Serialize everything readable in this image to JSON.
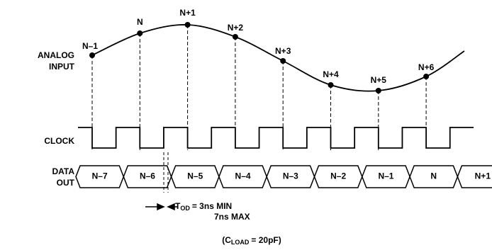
{
  "labels": {
    "analog_input": [
      "ANALOG",
      "INPUT"
    ],
    "clock": "CLOCK",
    "data_out": [
      "DATA",
      "OUT"
    ]
  },
  "samples": [
    "N–1",
    "N",
    "N+1",
    "N+2",
    "N+3",
    "N+4",
    "N+5",
    "N+6"
  ],
  "data_cells": [
    "N–7",
    "N–6",
    "N–5",
    "N–4",
    "N–3",
    "N–2",
    "N–1",
    "N",
    "N+1"
  ],
  "timing": {
    "symbol": "T",
    "subscript": "OD",
    "min": "= 3ns MIN",
    "max": "7ns MAX"
  },
  "load": {
    "prefix": "(C",
    "subscript": "LOAD",
    "suffix": "= 20pF)"
  }
}
